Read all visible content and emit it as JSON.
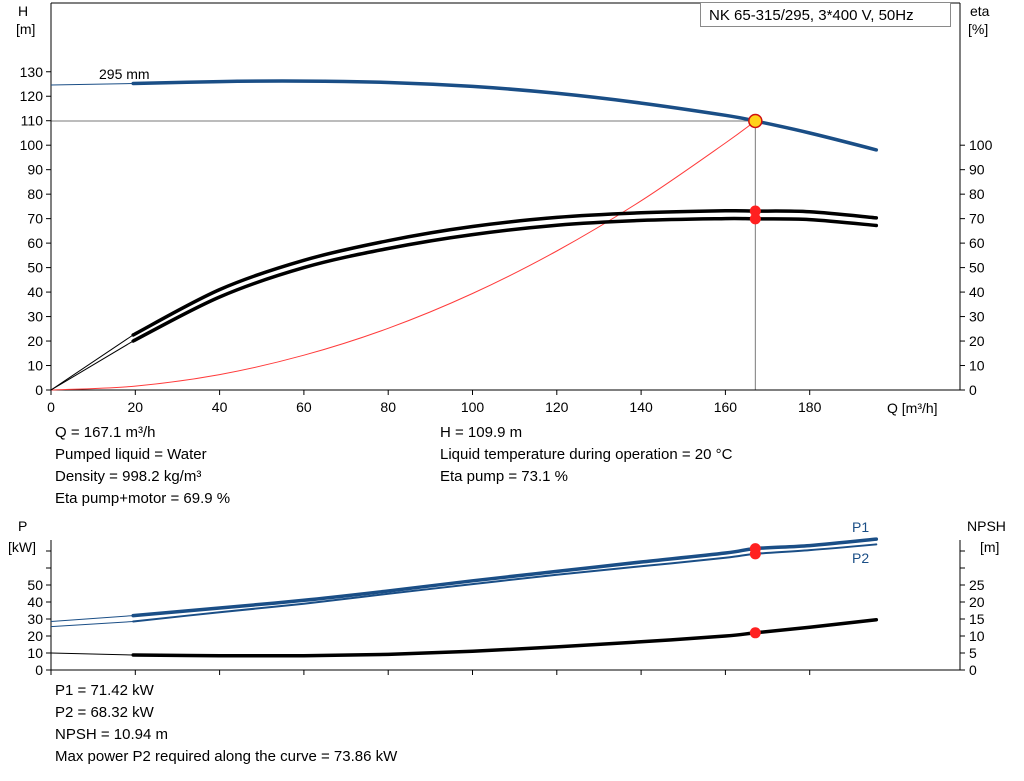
{
  "top_chart": {
    "title": "NK 65-315/295, 3*400 V, 50Hz",
    "y_left_label_1": "H",
    "y_left_label_2": "[m]",
    "y_right_label_1": "eta",
    "y_right_label_2": "[%]",
    "x_label": "Q [m³/h]",
    "curve_label": "295 mm"
  },
  "top_info": {
    "q": "Q = 167.1 m³/h",
    "liquid": "Pumped liquid = Water",
    "density": "Density = 998.2 kg/m³",
    "eta_pm": "Eta pump+motor = 69.9 %",
    "h": "H = 109.9 m",
    "temp": "Liquid temperature during operation = 20 °C",
    "eta_pump": "Eta pump = 73.1 %"
  },
  "bottom_chart": {
    "y_left_label_1": "P",
    "y_left_label_2": "[kW]",
    "y_right_label_1": "NPSH",
    "y_right_label_2": "[m]",
    "p1_label": "P1",
    "p2_label": "P2"
  },
  "bottom_info": {
    "p1": "P1 = 71.42 kW",
    "p2": "P2 = 68.32 kW",
    "npsh": "NPSH = 10.94 m",
    "max_p2": "Max power P2 required along the curve = 73.86 kW"
  },
  "colors": {
    "head": "#1a4e86",
    "eta": "#000000",
    "system": "#ff3b3b",
    "p1": "#1a4e86",
    "p2": "#1a4e86",
    "npsh": "#000000",
    "op_point": "#ff2020",
    "op_point_head_fill": "#ffd21a"
  },
  "chart_data": [
    {
      "type": "line",
      "title": "NK 65-315/295, 3*400 V, 50Hz",
      "xlabel": "Q [m³/h]",
      "ylabel": "H [m]",
      "ylabel_right": "eta [%]",
      "xlim": [
        0,
        200
      ],
      "ylim": [
        0,
        130
      ],
      "x_ticks": [
        0,
        20,
        40,
        60,
        80,
        100,
        120,
        140,
        160,
        180
      ],
      "y_ticks": [
        0,
        10,
        20,
        30,
        40,
        50,
        60,
        70,
        80,
        90,
        100,
        110,
        120,
        130
      ],
      "y_right_ticks": [
        0,
        10,
        20,
        30,
        40,
        50,
        60,
        70,
        80,
        90,
        100
      ],
      "series": [
        {
          "name": "295 mm",
          "x": [
            0,
            19.5,
            40,
            60,
            80,
            100,
            120,
            140,
            160,
            167.1,
            180,
            195.8
          ],
          "y": [
            124.6,
            125.2,
            126.0,
            126.2,
            125.6,
            124.0,
            121.2,
            117.2,
            112.2,
            109.9,
            105.0,
            98.1
          ]
        },
        {
          "x": [
            0,
            19.5,
            40,
            60,
            80,
            100,
            120,
            140,
            160,
            167.1,
            180,
            195.8
          ],
          "y": [
            0,
            22.5,
            41.0,
            53.0,
            61.0,
            66.8,
            70.5,
            72.4,
            73.2,
            73.1,
            72.8,
            70.3
          ]
        },
        {
          "x": [
            0,
            19.5,
            40,
            60,
            80,
            100,
            120,
            140,
            160,
            167.1,
            180,
            195.8
          ],
          "y": [
            0,
            20.0,
            38.0,
            50.0,
            57.8,
            63.5,
            67.3,
            69.3,
            70.0,
            69.9,
            69.6,
            67.2
          ]
        },
        {
          "x": [
            0,
            20,
            40,
            60,
            80,
            100,
            120,
            140,
            160,
            167.1
          ],
          "y": [
            0,
            1.6,
            6.3,
            14.2,
            25.2,
            39.4,
            56.8,
            77.3,
            100.9,
            109.9
          ]
        }
      ],
      "operating_point": {
        "x": 167.1,
        "y": 109.9
      }
    },
    {
      "type": "line",
      "ylabel": "P [kW]",
      "ylabel_right": "NPSH [m]",
      "xlim": [
        0,
        200
      ],
      "ylim": [
        0,
        80
      ],
      "y_ticks": [
        0,
        10,
        20,
        30,
        40,
        50
      ],
      "y_right_ticks": [
        0,
        5,
        10,
        15,
        20,
        25
      ],
      "series": [
        {
          "name": "P1",
          "x": [
            0,
            19.5,
            40,
            60,
            80,
            100,
            120,
            140,
            160,
            167.1,
            180,
            195.8
          ],
          "y": [
            28.5,
            32.0,
            36.5,
            41.0,
            46.5,
            52.5,
            58.0,
            63.5,
            68.8,
            71.42,
            73.2,
            77.0
          ]
        },
        {
          "name": "P2",
          "x": [
            0,
            19.5,
            40,
            60,
            80,
            100,
            120,
            140,
            160,
            167.1,
            180,
            195.8
          ],
          "y": [
            25.5,
            28.5,
            34.0,
            39.0,
            44.8,
            50.5,
            56.0,
            61.0,
            66.0,
            68.32,
            70.5,
            73.86
          ]
        },
        {
          "x": [
            0,
            19.5,
            40,
            60,
            80,
            100,
            120,
            140,
            160,
            167.1,
            180,
            195.8
          ],
          "y": [
            5.0,
            4.4,
            4.2,
            4.2,
            4.6,
            5.5,
            6.8,
            8.3,
            10.0,
            10.94,
            12.6,
            14.8
          ]
        }
      ],
      "operating_points": {
        "x": 167.1,
        "p1": 71.42,
        "p2": 68.32,
        "npsh": 10.94
      }
    }
  ]
}
